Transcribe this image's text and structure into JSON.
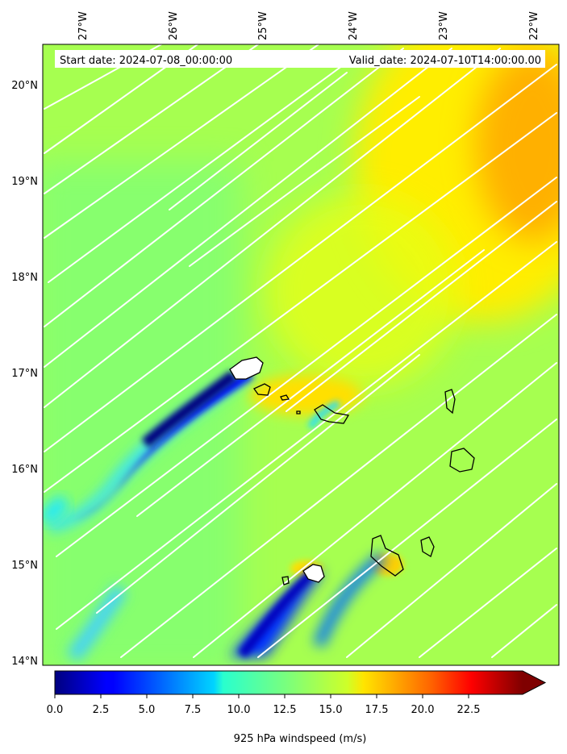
{
  "header": {
    "start_date": "Start date: 2024-07-08_00:00:00",
    "valid_date": "Valid_date: 2024-07-10T14:00:00.00"
  },
  "axes": {
    "lon_labels": [
      "27°W",
      "26°W",
      "25°W",
      "24°W",
      "23°W",
      "22°W"
    ],
    "lat_labels": [
      "20°N",
      "19°N",
      "18°N",
      "17°N",
      "16°N",
      "15°N",
      "14°N"
    ]
  },
  "colorbar": {
    "label": "925 hPa windspeed (m/s)",
    "ticks": [
      "0.0",
      "2.5",
      "5.0",
      "7.5",
      "10.0",
      "12.5",
      "15.0",
      "17.5",
      "20.0",
      "22.5"
    ],
    "extend": "max"
  },
  "colors": {
    "field_background": "#a8ff4e",
    "streamline": "#ffffff",
    "coastline": "#000000"
  }
}
